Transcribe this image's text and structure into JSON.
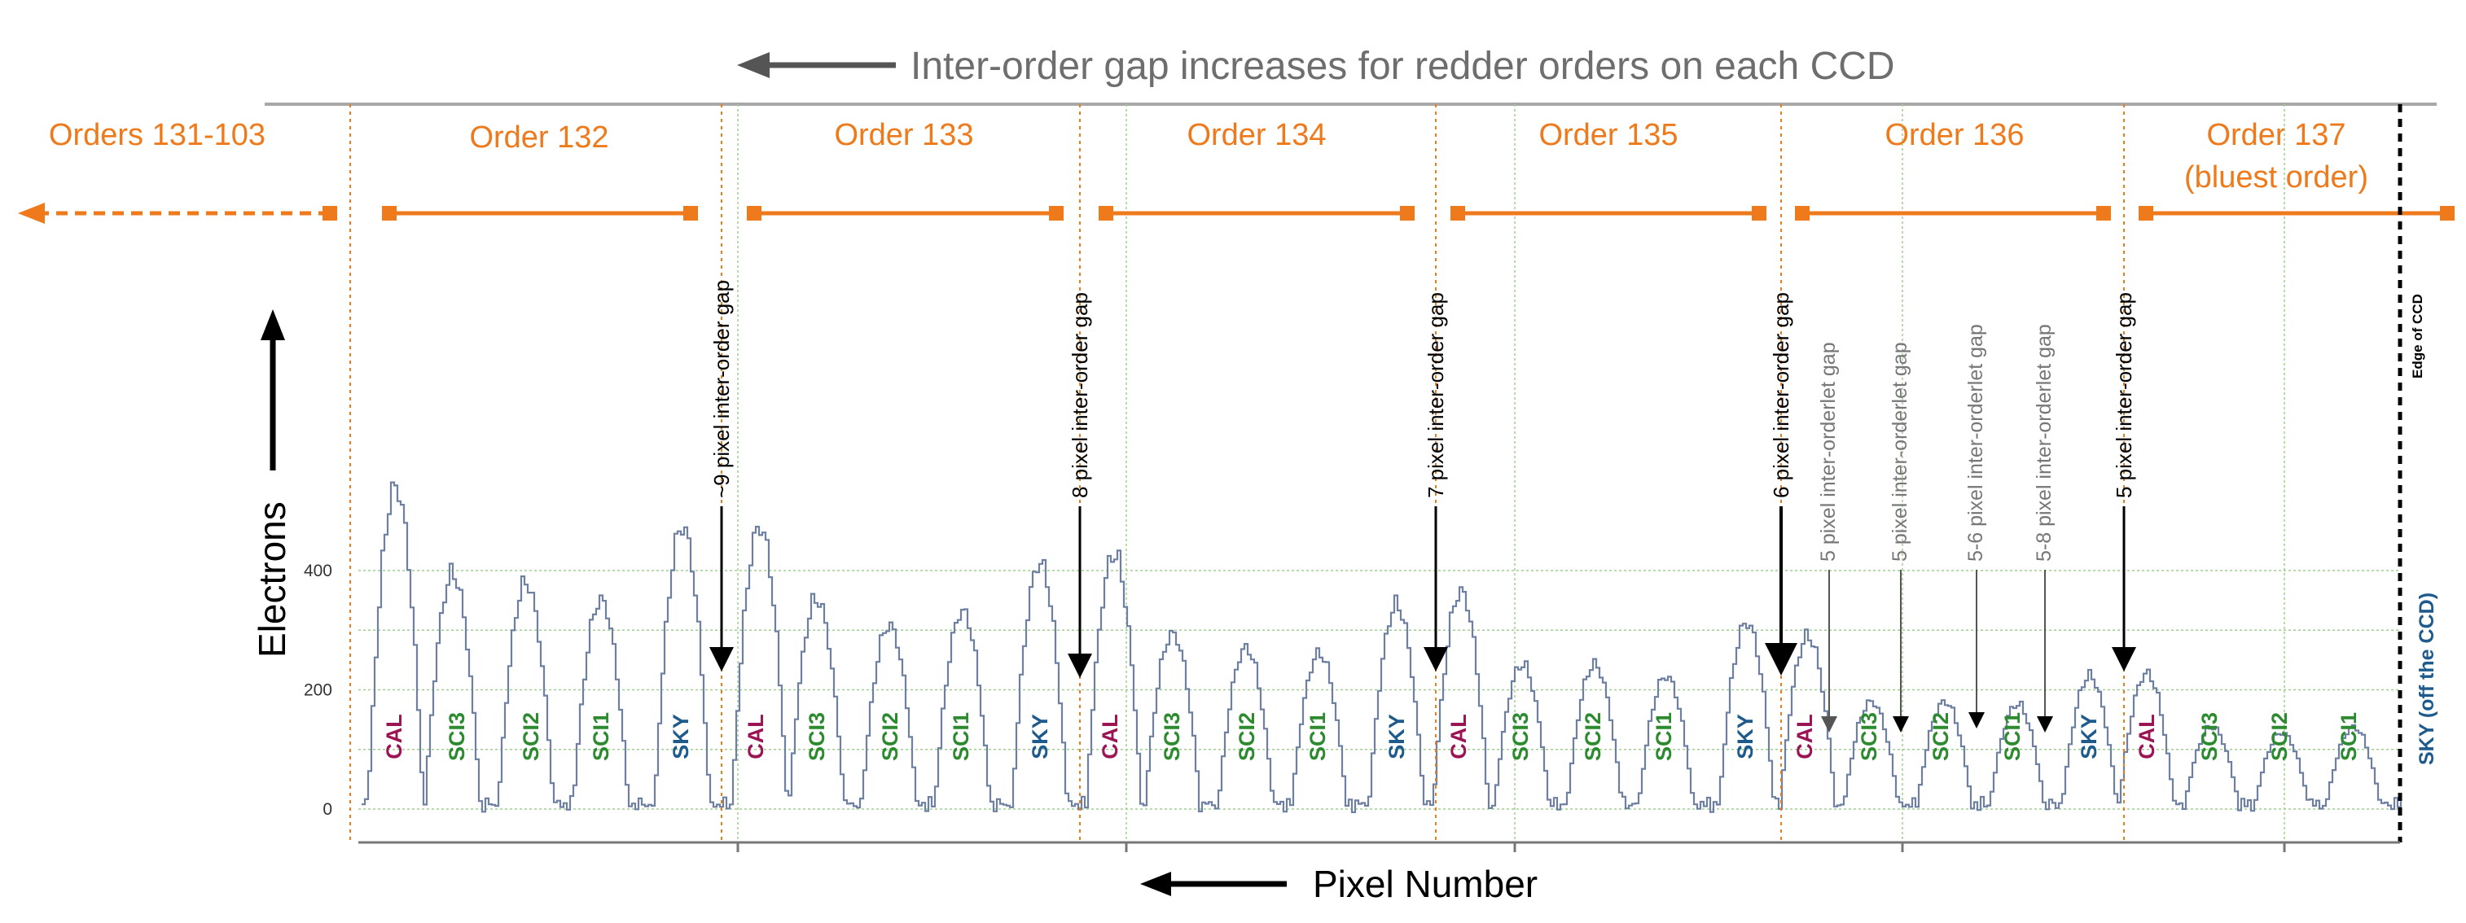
{
  "chart_data": {
    "type": "line",
    "title": "Inter-order gap increases for redder orders on each CCD",
    "xlabel": "Pixel Number",
    "ylabel": "Electrons",
    "ylim": [
      -20,
      600
    ],
    "yticks": [
      0,
      200,
      400
    ],
    "grid": true,
    "orders": [
      {
        "label": "Orders 131-103"
      },
      {
        "label": "Order 132"
      },
      {
        "label": "Order 133"
      },
      {
        "label": "Order 134"
      },
      {
        "label": "Order 135"
      },
      {
        "label": "Order 136"
      },
      {
        "label": "Order 137",
        "label2": "(bluest order)"
      }
    ],
    "fiber_peaks": [
      {
        "order": "Order 132",
        "fibers": [
          {
            "name": "CAL",
            "peak": 570
          },
          {
            "name": "SCI3",
            "peak": 415
          },
          {
            "name": "SCI2",
            "peak": 400
          },
          {
            "name": "SCI1",
            "peak": 370
          },
          {
            "name": "SKY",
            "peak": 500
          }
        ]
      },
      {
        "order": "Order 133",
        "fibers": [
          {
            "name": "CAL",
            "peak": 500
          },
          {
            "name": "SCI3",
            "peak": 370
          },
          {
            "name": "SCI2",
            "peak": 325
          },
          {
            "name": "SCI1",
            "peak": 350
          },
          {
            "name": "SKY",
            "peak": 435
          }
        ]
      },
      {
        "order": "Order 134",
        "fibers": [
          {
            "name": "CAL",
            "peak": 450
          },
          {
            "name": "SCI3",
            "peak": 310
          },
          {
            "name": "SCI2",
            "peak": 285
          },
          {
            "name": "SCI1",
            "peak": 275
          },
          {
            "name": "SKY",
            "peak": 360
          }
        ]
      },
      {
        "order": "Order 135",
        "fibers": [
          {
            "name": "CAL",
            "peak": 385
          },
          {
            "name": "SCI3",
            "peak": 255
          },
          {
            "name": "SCI2",
            "peak": 255
          },
          {
            "name": "SCI1",
            "peak": 235
          },
          {
            "name": "SKY",
            "peak": 330
          }
        ]
      },
      {
        "order": "Order 136",
        "fibers": [
          {
            "name": "CAL",
            "peak": 305
          },
          {
            "name": "SCI3",
            "peak": 190
          },
          {
            "name": "SCI2",
            "peak": 190
          },
          {
            "name": "SCI1",
            "peak": 185
          },
          {
            "name": "SKY",
            "peak": 235
          }
        ]
      },
      {
        "order": "Order 137",
        "fibers": [
          {
            "name": "CAL",
            "peak": 240
          },
          {
            "name": "SCI3",
            "peak": 145
          },
          {
            "name": "SCI2",
            "peak": 135
          },
          {
            "name": "SCI1",
            "peak": 145
          }
        ]
      }
    ],
    "fiber_colors": {
      "CAL": "#9b1454",
      "SCI3": "#2c8a2f",
      "SCI2": "#2c8a2f",
      "SCI1": "#2c8a2f",
      "SKY": "#1f5a8c"
    },
    "annotations": {
      "inter_order_gaps": [
        "~9 pixel inter-order gap",
        "8 pixel inter-order gap",
        "7 pixel inter-order gap",
        "6 pixel inter-order gap",
        "5 pixel inter-order gap"
      ],
      "inter_orderlet_gaps": [
        "5 pixel inter-orderlet gap",
        "5 pixel inter-orderlet gap",
        "5-6 pixel inter-orderlet gap",
        "5-8 pixel inter-orderlet gap"
      ],
      "edge_of_ccd": "Edge of CCD",
      "sky_off_ccd": "SKY (off the CCD)"
    },
    "colors": {
      "trace": "#6d7fa3",
      "order_bar": "#ee7a1c",
      "grid": "#9fcf8f",
      "title_text": "#6e6e6e"
    }
  }
}
